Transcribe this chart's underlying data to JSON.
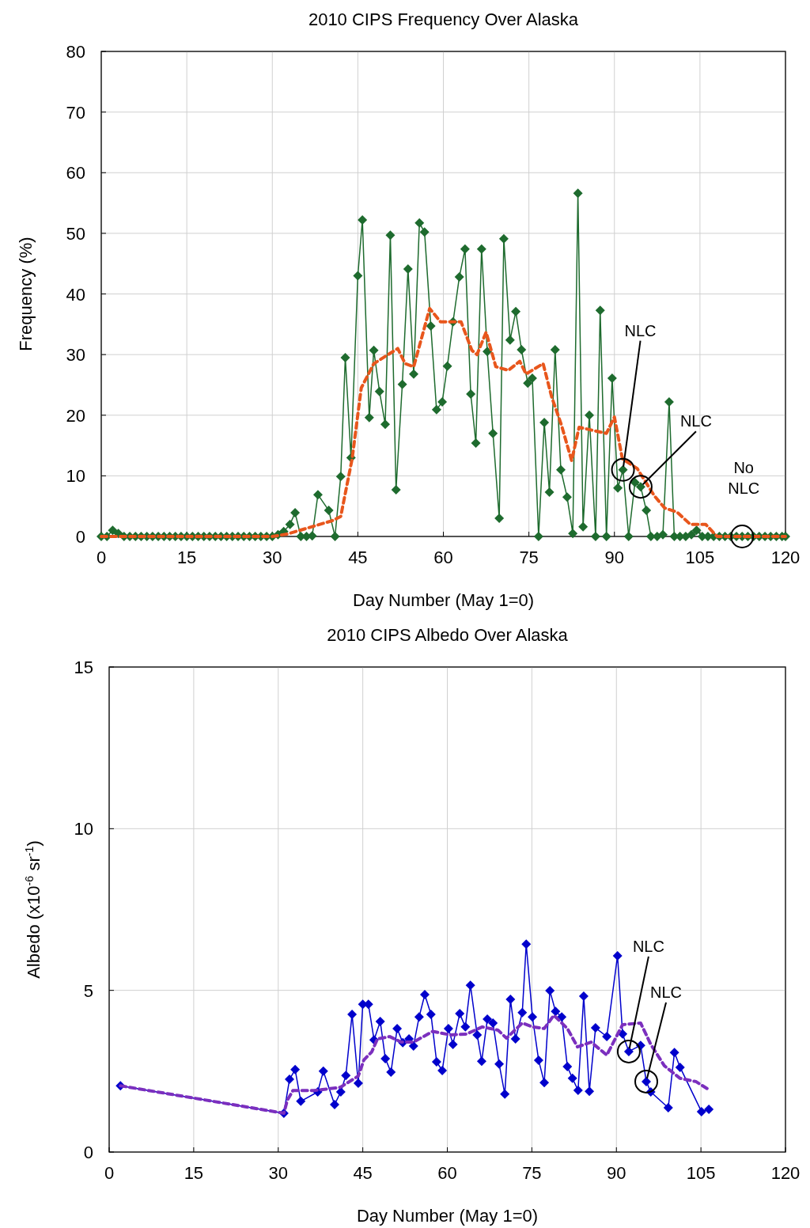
{
  "chart_data": [
    {
      "type": "line",
      "title": "2010 CIPS Frequency Over Alaska",
      "xlabel": "Day Number (May 1=0)",
      "ylabel": "Frequency (%)",
      "xlim": [
        0,
        120
      ],
      "xticks": [
        0,
        15,
        30,
        45,
        60,
        75,
        90,
        105,
        120
      ],
      "ylim": [
        0,
        80
      ],
      "yticks": [
        0,
        10,
        20,
        30,
        40,
        50,
        60,
        70,
        80
      ],
      "grid": true,
      "series": [
        {
          "color": "#1e6b2e",
          "marker": "diamond",
          "line_style": "solid",
          "x": [
            0,
            1,
            2,
            3,
            4,
            5,
            6,
            7,
            8,
            9,
            10,
            11,
            12,
            13,
            14,
            15,
            16,
            17,
            18,
            19,
            20,
            21,
            22,
            23,
            24,
            25,
            26,
            27,
            28,
            29,
            30,
            31,
            32,
            33.1,
            34,
            35,
            36,
            37,
            38,
            39.9,
            41,
            42,
            42.8,
            43.8,
            45,
            45.8,
            47,
            47.8,
            48.8,
            49.8,
            50.7,
            51.7,
            52.8,
            53.8,
            54.8,
            55.8,
            56.7,
            57.8,
            58.8,
            59.8,
            60.7,
            61.7,
            62.8,
            63.8,
            64.8,
            65.7,
            66.7,
            67.7,
            68.7,
            69.8,
            70.6,
            71.7,
            72.7,
            73.7,
            74.8,
            75.6,
            76.7,
            77.7,
            78.6,
            79.6,
            80.6,
            81.7,
            82.7,
            83.6,
            84.5,
            85.6,
            86.7,
            87.5,
            88.6,
            89.6,
            90.6,
            91.5,
            92.5,
            93.6,
            94.6,
            95.6,
            96.4,
            97.5,
            98.5,
            99.6,
            100.5,
            101.5,
            102.5,
            103.5,
            104.4,
            105.4,
            106.4,
            107.4,
            108.4,
            109.4,
            110.4,
            111.4,
            112.4,
            113.4,
            114.4,
            115.4,
            116.4,
            117.4,
            118.4,
            119.4,
            120
          ],
          "values": [
            0,
            0,
            1,
            0.5,
            0,
            0,
            0,
            0,
            0,
            0,
            0,
            0,
            0,
            0,
            0,
            0,
            0,
            0,
            0,
            0,
            0,
            0,
            0,
            0,
            0,
            0,
            0,
            0,
            0,
            0,
            0,
            0.3,
            0.8,
            2,
            3.9,
            0,
            0,
            0.1,
            6.9,
            4.3,
            0,
            9.9,
            29.5,
            13,
            43,
            52.2,
            19.6,
            30.7,
            23.9,
            18.5,
            49.7,
            7.7,
            25.1,
            44.1,
            26.8,
            51.7,
            50.2,
            34.7,
            20.9,
            22.2,
            28.1,
            35.4,
            42.8,
            47.4,
            23.5,
            15.4,
            47.4,
            30.5,
            17,
            3,
            49.1,
            32.4,
            37.1,
            30.8,
            25.3,
            26.1,
            0,
            18.8,
            7.3,
            30.8,
            11,
            6.5,
            0.5,
            56.6,
            1.6,
            20,
            0,
            37.3,
            0,
            26.1,
            8,
            11,
            0,
            8.9,
            8.2,
            4.3,
            0,
            0,
            0.3,
            22.2,
            0,
            0,
            0,
            0.3,
            1,
            0,
            0,
            0,
            0,
            0,
            0,
            0,
            0,
            0,
            0,
            0,
            0,
            0,
            0,
            0,
            0
          ]
        },
        {
          "color": "#e8561c",
          "marker": "none",
          "line_style": "dashed",
          "x": [
            0,
            30,
            32.6,
            37.3,
            40.5,
            42,
            44,
            45.6,
            47.8,
            52,
            53.3,
            54.8,
            57.6,
            59.5,
            63.1,
            65,
            65.9,
            67.5,
            69.2,
            71.4,
            73.4,
            74.5,
            77.5,
            79,
            80.7,
            82.5,
            83.8,
            88.6,
            90,
            91.4,
            94,
            97,
            98.8,
            101,
            103.3,
            106,
            108,
            120
          ],
          "values": [
            0,
            0,
            0.4,
            1.7,
            2.6,
            3.3,
            12.8,
            24.5,
            28.5,
            31,
            28.5,
            28,
            37.6,
            35.4,
            35.4,
            30.7,
            30,
            33.7,
            28,
            27.4,
            28.9,
            26.8,
            28.5,
            23,
            18.4,
            12.5,
            18,
            17,
            19.7,
            12.8,
            11.2,
            6.7,
            4.7,
            4,
            2,
            2,
            0,
            0
          ]
        }
      ],
      "annotations": [
        {
          "text": "NLC",
          "x": 91.5,
          "y": 11
        },
        {
          "text": "NLC",
          "x": 94.6,
          "y": 8.2
        },
        {
          "text": "No NLC",
          "x": 112.4,
          "y": 0
        }
      ]
    },
    {
      "type": "line",
      "title": "2010 CIPS Albedo Over Alaska",
      "xlabel": "Day Number (May 1=0)",
      "ylabel": "Albedo (x10$^{-6}$ sr$^{-1}$)",
      "xlim": [
        0,
        120
      ],
      "xticks": [
        0,
        15,
        30,
        45,
        60,
        75,
        90,
        105,
        120
      ],
      "ylim": [
        0,
        15
      ],
      "yticks": [
        0,
        5,
        10,
        15
      ],
      "grid": true,
      "series": [
        {
          "color": "#0000cc",
          "marker": "diamond",
          "line_style": "solid",
          "x": [
            2,
            31,
            32,
            33,
            34,
            37,
            38,
            40,
            41.1,
            42,
            43.1,
            44.2,
            45,
            46,
            47,
            48.1,
            49,
            50,
            51.1,
            52.1,
            53.2,
            54,
            55,
            56,
            57.1,
            58.1,
            59.1,
            60.2,
            61,
            62.2,
            63.2,
            64.1,
            65.3,
            66.1,
            67.1,
            68.1,
            69.2,
            70.2,
            71.2,
            72.1,
            73.3,
            74,
            75.1,
            76.2,
            77.2,
            78.2,
            79.2,
            80.3,
            81.3,
            82.2,
            83.2,
            84.2,
            85.2,
            86.3,
            88.3,
            90.2,
            91.1,
            92.2,
            94.3,
            95.3,
            96.1,
            99.2,
            100.3,
            101.3,
            105.1,
            106.4
          ],
          "values": [
            2.05,
            1.2,
            2.25,
            2.55,
            1.57,
            1.86,
            2.5,
            1.47,
            1.86,
            2.37,
            4.26,
            2.13,
            4.57,
            4.57,
            3.47,
            4.04,
            2.89,
            2.47,
            3.82,
            3.38,
            3.5,
            3.28,
            4.18,
            4.87,
            4.26,
            2.79,
            2.52,
            3.82,
            3.33,
            4.28,
            3.87,
            5.16,
            3.62,
            2.81,
            4.11,
            3.99,
            2.72,
            1.79,
            4.72,
            3.5,
            4.31,
            6.43,
            4.18,
            2.84,
            2.15,
            4.99,
            4.35,
            4.18,
            2.64,
            2.28,
            1.91,
            4.82,
            1.88,
            3.84,
            3.57,
            6.07,
            3.65,
            3.11,
            3.3,
            2.18,
            1.86,
            1.37,
            3.08,
            2.62,
            1.25,
            1.32
          ]
        },
        {
          "color": "#7b2fbe",
          "marker": "none",
          "line_style": "dashed",
          "x": [
            2,
            31,
            31.6,
            32.6,
            36.3,
            41,
            44.2,
            45.2,
            46.6,
            47.6,
            49.8,
            51.8,
            54,
            57.4,
            60.6,
            63.4,
            66.2,
            69,
            70.5,
            73.3,
            75.1,
            77.2,
            78.9,
            81.3,
            83.1,
            85.5,
            88.3,
            91.1,
            94.3,
            96.1,
            98.5,
            101.3,
            104.1,
            106.4
          ],
          "values": [
            2.05,
            1.2,
            1.6,
            1.9,
            1.9,
            2,
            2.35,
            2.85,
            3.1,
            3.5,
            3.57,
            3.4,
            3.4,
            3.73,
            3.62,
            3.65,
            3.87,
            3.77,
            3.52,
            3.99,
            3.87,
            3.82,
            4.23,
            3.82,
            3.25,
            3.4,
            3,
            3.94,
            3.99,
            3.33,
            2.67,
            2.28,
            2.18,
            1.93
          ]
        }
      ],
      "annotations": [
        {
          "text": "NLC",
          "x": 92.2,
          "y": 3.11
        },
        {
          "text": "NLC",
          "x": 95.3,
          "y": 2.18
        }
      ]
    }
  ]
}
